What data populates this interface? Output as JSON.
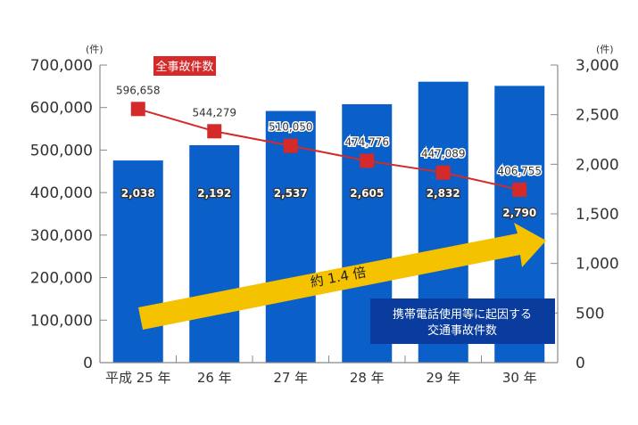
{
  "chart_data": {
    "type": "bar+line",
    "categories": [
      "平成 25 年",
      "26 年",
      "27 年",
      "28 年",
      "29 年",
      "30 年"
    ],
    "series": [
      {
        "name": "携帯電話使用等に起因する交通事故件数",
        "type": "bar",
        "axis": "right",
        "values": [
          2038,
          2192,
          2537,
          2605,
          2832,
          2790
        ],
        "labels": [
          "2,038",
          "2,192",
          "2,537",
          "2,605",
          "2,832",
          "2,790"
        ],
        "color": "#0a5fc8"
      },
      {
        "name": "全事故件数",
        "type": "line",
        "axis": "left",
        "values": [
          596658,
          544279,
          510050,
          474776,
          447089,
          406755
        ],
        "labels": [
          "596,658",
          "544,279",
          "510,050",
          "474,776",
          "447,089",
          "406,755"
        ],
        "color": "#d42a2a"
      }
    ],
    "left_axis": {
      "unit": "(件)",
      "ylim": [
        0,
        700000
      ],
      "ticks": [
        "0",
        "100,000",
        "200,000",
        "300,000",
        "400,000",
        "500,000",
        "600,000",
        "700,000"
      ]
    },
    "right_axis": {
      "unit": "(件)",
      "ylim": [
        0,
        3000
      ],
      "ticks": [
        "0",
        "500",
        "1,000",
        "1,500",
        "2,000",
        "2,500",
        "3,000"
      ]
    },
    "legend": {
      "line_label": "全事故件数",
      "bar_label_line1": "携帯電話使用等に起因する",
      "bar_label_line2": "交通事故件数",
      "bar_legend_color": "#0a3c9e"
    },
    "annotation": {
      "text": "約 1.4 倍",
      "color": "#f5c200"
    },
    "grid": false
  }
}
